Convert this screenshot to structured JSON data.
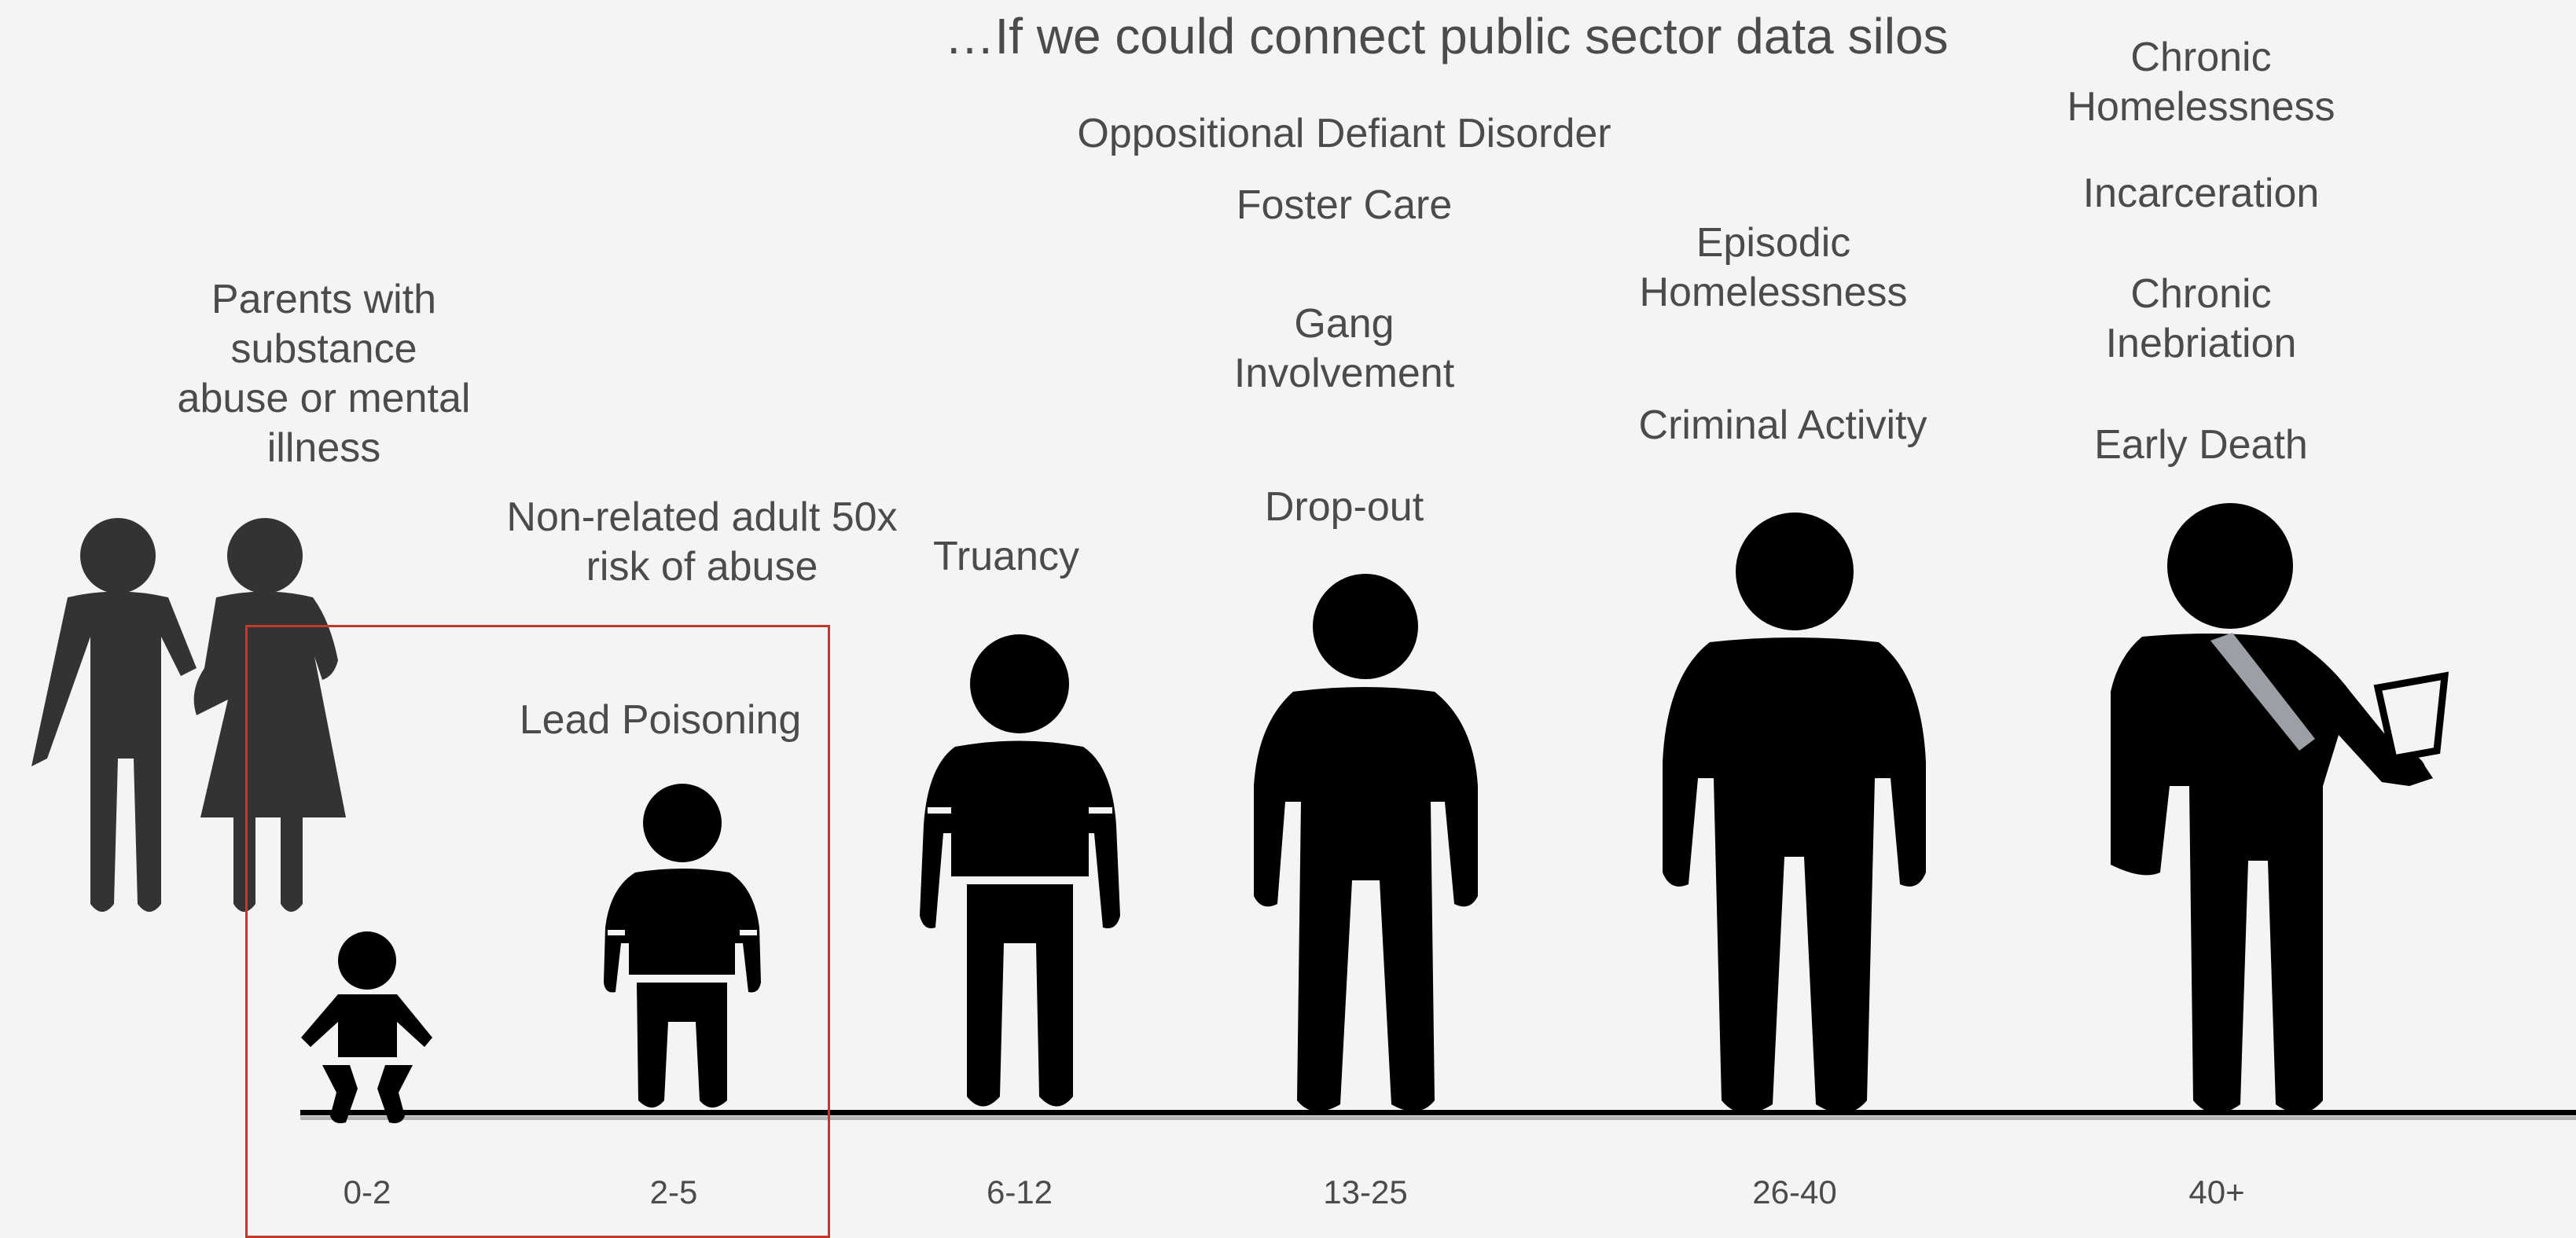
{
  "title": "…If we could connect public sector data silos",
  "labels": {
    "parents": "Parents with\nsubstance\nabuse or mental\nillness",
    "non_related_adult": "Non-related adult 50x\nrisk of abuse",
    "lead_poisoning": "Lead Poisoning",
    "truancy": "Truancy",
    "oppositional": "Oppositional Defiant Disorder",
    "foster_care": "Foster Care",
    "gang": "Gang\nInvolvement",
    "dropout": "Drop-out",
    "episodic_homelessness": "Episodic\nHomelessness",
    "criminal_activity": "Criminal Activity",
    "chronic_homelessness": "Chronic\nHomelessness",
    "incarceration": "Incarceration",
    "chronic_inebriation": "Chronic\nInebriation",
    "early_death": "Early Death"
  },
  "ages": [
    "0-2",
    "2-5",
    "6-12",
    "13-25",
    "26-40",
    "40+"
  ],
  "colors": {
    "figure": "#000000",
    "parent_figure": "#333333",
    "highlight": "#c0392b",
    "text": "#4b4b4b",
    "background": "#f4f4f6"
  },
  "icons": {
    "parents": "parents-icon",
    "baby": "baby-icon",
    "toddler": "toddler-icon",
    "child": "child-icon",
    "teen": "teen-icon",
    "adult": "adult-icon",
    "older_adult": "older-adult-with-cup-icon"
  }
}
